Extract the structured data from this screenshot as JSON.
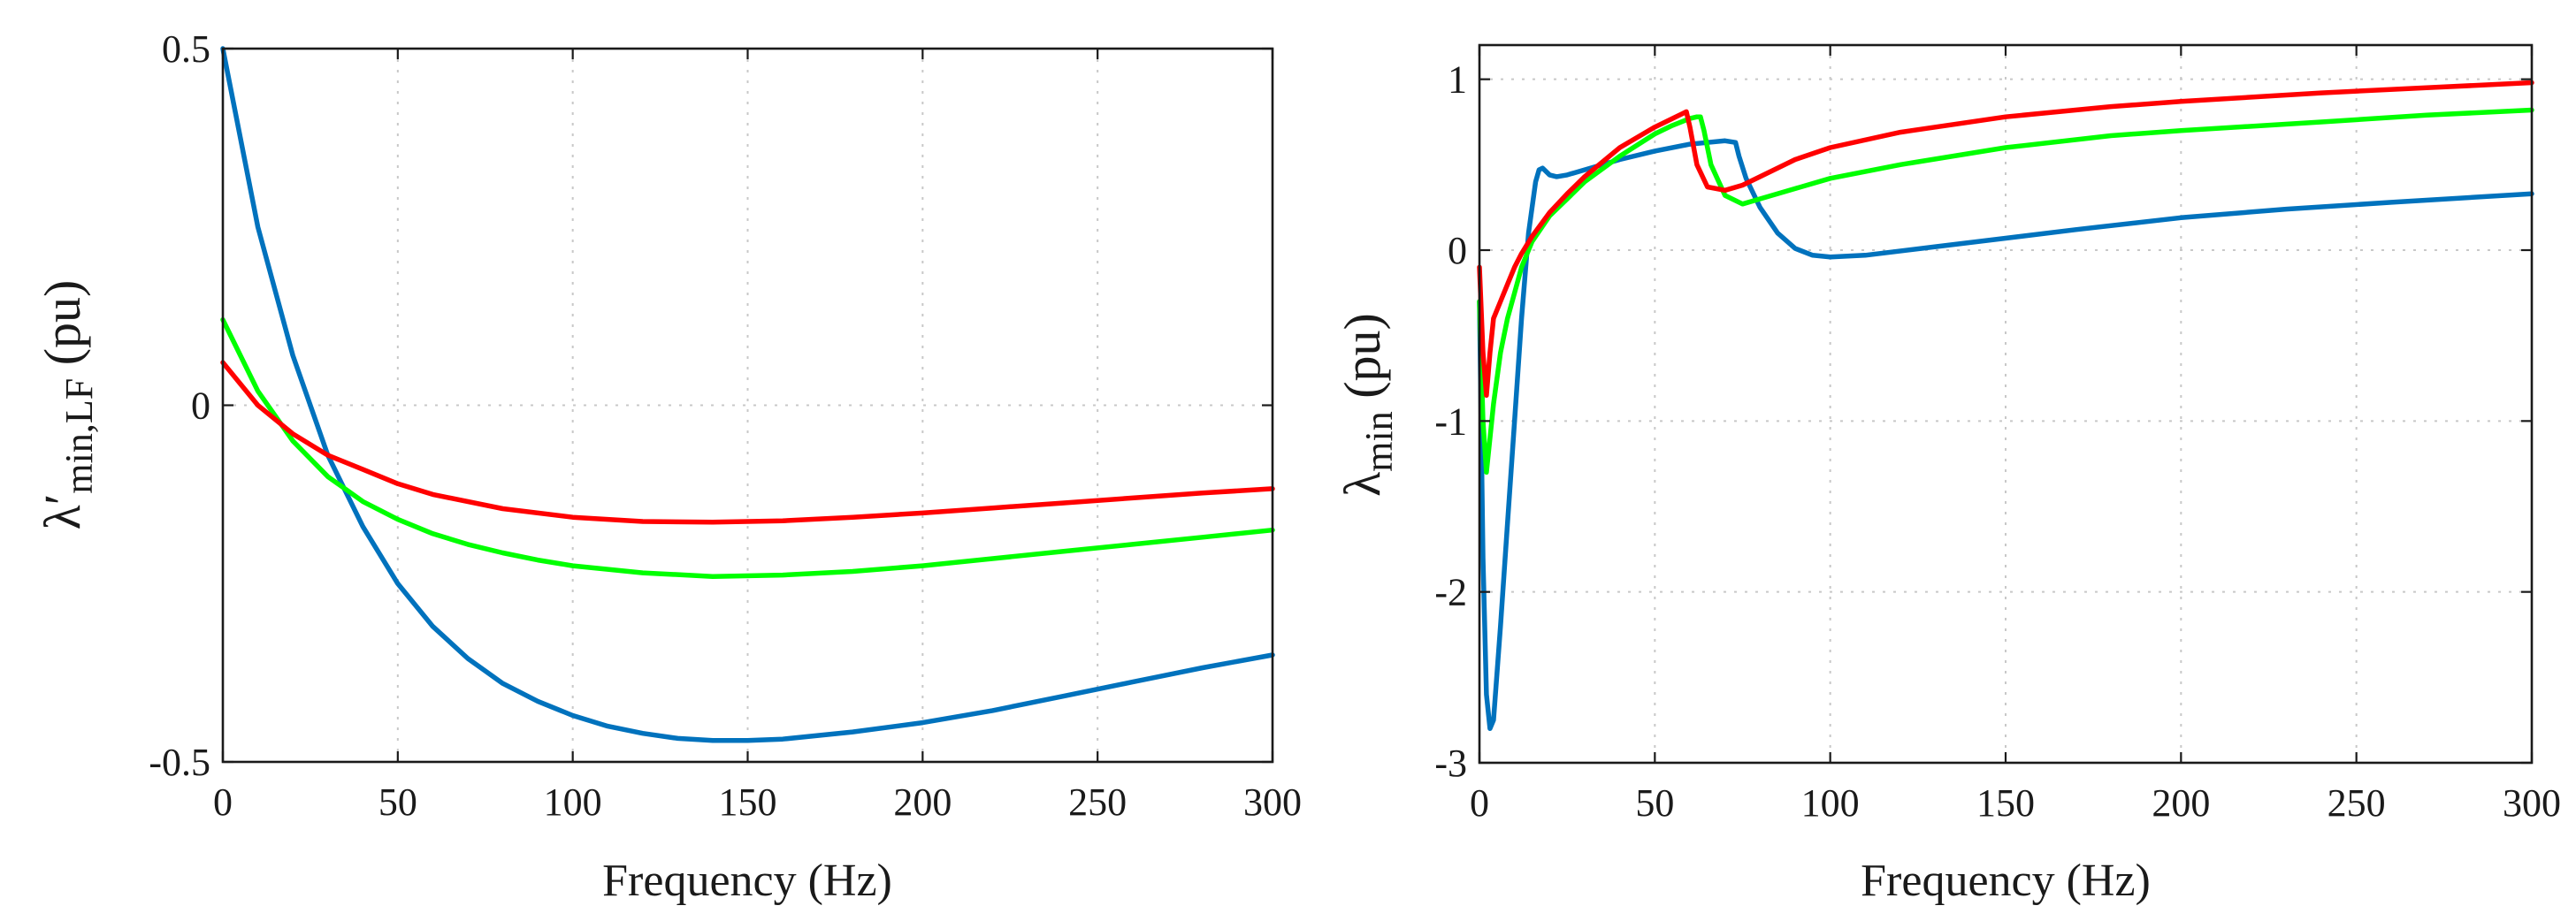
{
  "chart_data": [
    {
      "type": "line",
      "xlabel": "Frequency (Hz)",
      "ylabel": {
        "symbol": "λ′",
        "subscript": "min,LF",
        "unit": " (pu)"
      },
      "xlim": [
        0,
        300
      ],
      "ylim": [
        -0.5,
        0.5
      ],
      "xticks": [
        0,
        50,
        100,
        150,
        200,
        250,
        300
      ],
      "xtick_labels": [
        "0",
        "50",
        "100",
        "150",
        "200",
        "250",
        "300"
      ],
      "yticks": [
        -0.5,
        0,
        0.5
      ],
      "ytick_labels": [
        "-0.5",
        "0",
        "0.5"
      ],
      "grid": true,
      "series": [
        {
          "name": "blue",
          "color": "#0072BD",
          "x": [
            0,
            10,
            20,
            30,
            40,
            50,
            60,
            70,
            80,
            90,
            100,
            110,
            120,
            130,
            140,
            150,
            160,
            180,
            200,
            220,
            240,
            260,
            280,
            300
          ],
          "y": [
            0.5,
            0.25,
            0.07,
            -0.07,
            -0.17,
            -0.25,
            -0.31,
            -0.355,
            -0.39,
            -0.415,
            -0.435,
            -0.45,
            -0.46,
            -0.467,
            -0.47,
            -0.47,
            -0.468,
            -0.458,
            -0.445,
            -0.428,
            -0.408,
            -0.388,
            -0.368,
            -0.35
          ]
        },
        {
          "name": "green",
          "color": "#00FF00",
          "x": [
            0,
            10,
            20,
            30,
            40,
            50,
            60,
            70,
            80,
            90,
            100,
            120,
            140,
            160,
            180,
            200,
            220,
            240,
            260,
            280,
            300
          ],
          "y": [
            0.12,
            0.02,
            -0.05,
            -0.1,
            -0.135,
            -0.16,
            -0.18,
            -0.195,
            -0.207,
            -0.217,
            -0.225,
            -0.235,
            -0.24,
            -0.238,
            -0.233,
            -0.225,
            -0.215,
            -0.205,
            -0.195,
            -0.185,
            -0.175
          ]
        },
        {
          "name": "red",
          "color": "#FF0000",
          "x": [
            0,
            10,
            20,
            30,
            40,
            50,
            60,
            80,
            100,
            120,
            140,
            160,
            180,
            200,
            220,
            240,
            260,
            280,
            300
          ],
          "y": [
            0.06,
            0.0,
            -0.04,
            -0.07,
            -0.09,
            -0.11,
            -0.125,
            -0.145,
            -0.157,
            -0.163,
            -0.164,
            -0.162,
            -0.157,
            -0.151,
            -0.144,
            -0.137,
            -0.13,
            -0.123,
            -0.117
          ]
        }
      ]
    },
    {
      "type": "line",
      "xlabel": "Frequency (Hz)",
      "ylabel": {
        "symbol": "λ",
        "subscript": "min",
        "unit": " (pu)"
      },
      "xlim": [
        0,
        300
      ],
      "ylim": [
        -3,
        1.2
      ],
      "xticks": [
        0,
        50,
        100,
        150,
        200,
        250,
        300
      ],
      "xtick_labels": [
        "0",
        "50",
        "100",
        "150",
        "200",
        "250",
        "300"
      ],
      "yticks": [
        -3,
        -2,
        -1,
        0,
        1
      ],
      "ytick_labels": [
        "-3",
        "-2",
        "-1",
        "0",
        "1"
      ],
      "grid": true,
      "series": [
        {
          "name": "blue",
          "color": "#0072BD",
          "x": [
            0,
            1,
            2,
            3,
            4,
            6,
            8,
            10,
            12,
            14,
            16,
            17,
            18,
            20,
            22,
            25,
            30,
            40,
            50,
            60,
            65,
            70,
            73,
            74,
            76,
            80,
            85,
            90,
            95,
            100,
            110,
            130,
            150,
            170,
            200,
            230,
            260,
            300
          ],
          "y": [
            -0.3,
            -1.8,
            -2.6,
            -2.8,
            -2.75,
            -2.2,
            -1.6,
            -1.0,
            -0.4,
            0.1,
            0.4,
            0.47,
            0.48,
            0.44,
            0.43,
            0.44,
            0.47,
            0.53,
            0.58,
            0.62,
            0.63,
            0.64,
            0.63,
            0.55,
            0.42,
            0.25,
            0.1,
            0.01,
            -0.03,
            -0.04,
            -0.03,
            0.02,
            0.07,
            0.12,
            0.19,
            0.24,
            0.28,
            0.33
          ]
        },
        {
          "name": "green",
          "color": "#00FF00",
          "x": [
            0,
            1,
            2,
            3,
            4,
            6,
            8,
            10,
            12,
            15,
            20,
            25,
            30,
            40,
            50,
            55,
            60,
            62,
            63,
            64,
            66,
            70,
            75,
            80,
            90,
            100,
            120,
            150,
            180,
            200,
            240,
            270,
            300
          ],
          "y": [
            -0.3,
            -1.0,
            -1.3,
            -1.1,
            -0.9,
            -0.6,
            -0.4,
            -0.25,
            -0.1,
            0.05,
            0.2,
            0.3,
            0.4,
            0.55,
            0.68,
            0.73,
            0.77,
            0.78,
            0.78,
            0.7,
            0.5,
            0.32,
            0.27,
            0.3,
            0.36,
            0.42,
            0.5,
            0.6,
            0.67,
            0.7,
            0.75,
            0.79,
            0.82
          ]
        },
        {
          "name": "red",
          "color": "#FF0000",
          "x": [
            0,
            1,
            2,
            3,
            4,
            6,
            8,
            10,
            12,
            15,
            20,
            25,
            30,
            40,
            50,
            55,
            58,
            59,
            60,
            62,
            65,
            70,
            75,
            80,
            90,
            100,
            120,
            150,
            180,
            200,
            240,
            270,
            300
          ],
          "y": [
            -0.1,
            -0.6,
            -0.85,
            -0.6,
            -0.4,
            -0.3,
            -0.2,
            -0.1,
            -0.02,
            0.08,
            0.22,
            0.33,
            0.43,
            0.6,
            0.72,
            0.77,
            0.8,
            0.81,
            0.72,
            0.5,
            0.37,
            0.35,
            0.38,
            0.43,
            0.53,
            0.6,
            0.69,
            0.78,
            0.84,
            0.87,
            0.92,
            0.95,
            0.98
          ]
        }
      ]
    }
  ]
}
